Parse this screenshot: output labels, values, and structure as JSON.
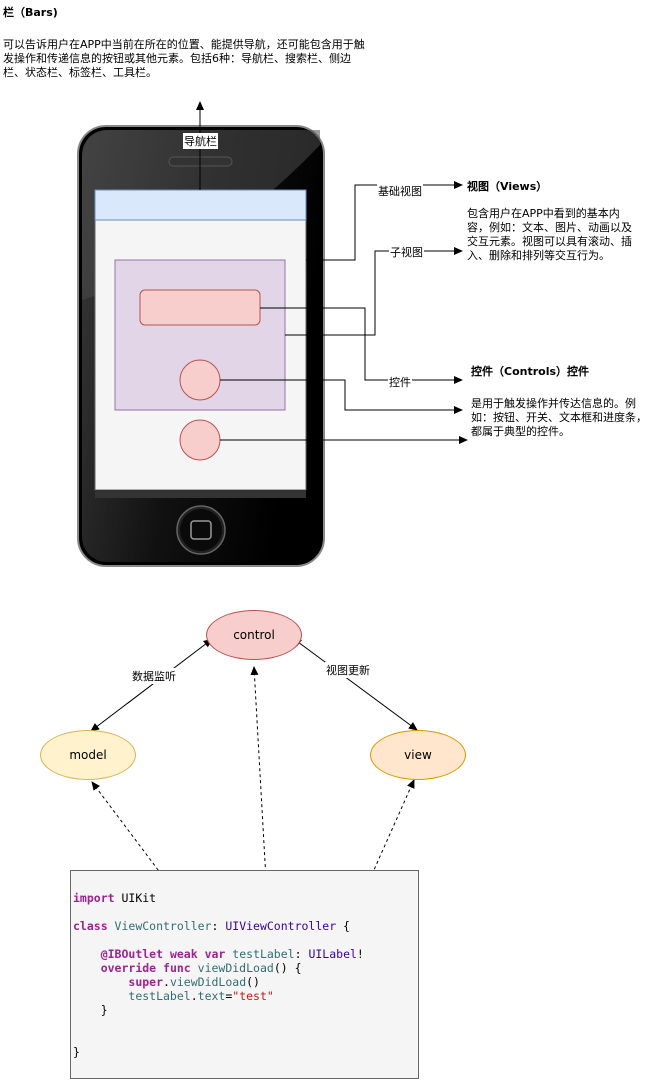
{
  "header": {
    "title": "栏（Bars)",
    "description_lines": [
      "可以告诉用户在APP中当前在所在的位置、能提供导航，还可能包含用于触",
      "发操作和传递信息的按钮或其他元素。包括6种：导航栏、搜索栏、侧边",
      "栏、状态栏、标签栏、工具栏。"
    ]
  },
  "phone_labels": {
    "navbar": "导航栏",
    "base_view": "基础视图",
    "sub_view": "子视图",
    "control": "控件"
  },
  "views_section": {
    "title": "视图（Views）",
    "lines": [
      "包含用户在APP中看到的基本内",
      "容，例如：文本、图片、动画以及",
      "交互元素。视图可以具有滚动、插",
      "入、删除和排列等交互行为。"
    ]
  },
  "controls_section": {
    "title": "控件（Controls）控件",
    "lines": [
      "是用于触发操作并传达信息的。例",
      "如：按钮、开关、文本框和进度条，",
      "都属于典型的控件。"
    ]
  },
  "mvc": {
    "control": "control",
    "model": "model",
    "view": "view",
    "data_listen": "数据监听",
    "view_update": "视图更新"
  },
  "colors": {
    "control_fill": "#f8cecc",
    "model_fill": "#fff2cc",
    "view_fill": "#ffe6cc",
    "subview_fill": "#e1d5e7",
    "navbar_fill": "#dae8fc"
  },
  "code": {
    "import_kw": "import",
    "import_mod": " UIKit",
    "class_kw": "class",
    "class_name": " ViewController",
    "colon": ": ",
    "super_type": "UIViewController",
    "open_brace": " {",
    "iboutlet": "@IBOutlet",
    "weak": " weak",
    "var": " var",
    "label_name": " testLabel",
    "label_type": "UILabel",
    "bang": "!",
    "override": "override",
    "func": " func",
    "method": " viewDidLoad",
    "parens": "() {",
    "super_kw": "super",
    "dot": ".",
    "super_call": "viewDidLoad",
    "call_parens": "()",
    "text_prop": "text",
    "eq": "=",
    "str_val": "\"test\"",
    "close_inner": "}",
    "close_outer": "}"
  }
}
